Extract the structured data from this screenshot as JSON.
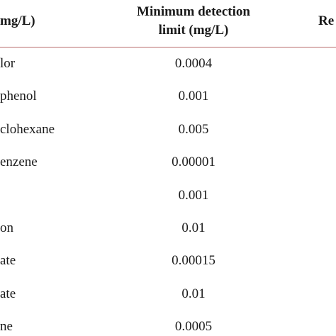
{
  "header": {
    "left_col": "mg/L)",
    "limit_line1": "Minimum detection",
    "limit_line2": "limit (mg/L)",
    "right_col": "Re"
  },
  "rows": [
    {
      "name": "lor",
      "limit": "0.0004"
    },
    {
      "name": "phenol",
      "limit": "0.001"
    },
    {
      "name": "clohexane",
      "limit": "0.005"
    },
    {
      "name": "enzene",
      "limit": "0.00001"
    },
    {
      "name": "",
      "limit": "0.001"
    },
    {
      "name": "on",
      "limit": "0.01"
    },
    {
      "name": "ate",
      "limit": "0.00015"
    },
    {
      "name": "ate",
      "limit": "0.01"
    },
    {
      "name": "ne",
      "limit": "0.0005"
    }
  ]
}
